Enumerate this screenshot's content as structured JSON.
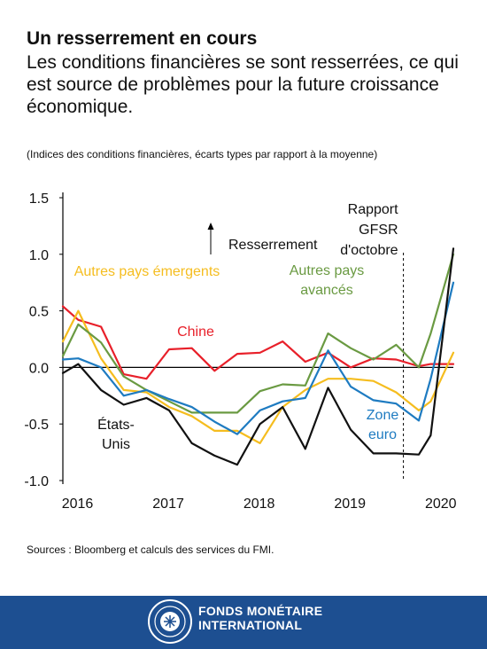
{
  "header": {
    "title": "Un resserrement en cours",
    "subtitle": "Les conditions financières se sont resserrées, ce qui est source de problèmes pour la future croissance économique.",
    "units_note": "(Indices des conditions financières, écarts types par rapport à la moyenne)"
  },
  "chart_data": {
    "type": "line",
    "title": "",
    "xlabel": "",
    "ylabel": "",
    "ylim": [
      -1.0,
      1.5
    ],
    "xlim": [
      2016.0,
      2020.3
    ],
    "yticks": [
      "1.5",
      "1.0",
      "0.5",
      "0.0",
      "-0.5",
      "-1.0"
    ],
    "ytick_values": [
      1.5,
      1.0,
      0.5,
      0.0,
      -0.5,
      -1.0
    ],
    "xticks": [
      "2016",
      "2017",
      "2018",
      "2019",
      "2020"
    ],
    "xtick_values": [
      2016.2,
      2017.2,
      2018.2,
      2019.2,
      2020.2
    ],
    "grid": false,
    "vline": {
      "x": 2019.75,
      "style": "dashed",
      "label": "Rapport GFSR d'octobre",
      "label_lines": [
        "Rapport",
        "GFSR",
        "d'octobre"
      ]
    },
    "annotation": {
      "label": "Resserrement",
      "direction": "up"
    },
    "series": [
      {
        "name": "Chine",
        "color": "#e8202a",
        "x": [
          2016.0,
          2016.17,
          2016.42,
          2016.67,
          2016.92,
          2017.17,
          2017.42,
          2017.67,
          2017.92,
          2018.17,
          2018.42,
          2018.67,
          2018.92,
          2019.17,
          2019.42,
          2019.67,
          2019.92,
          2020.05,
          2020.3
        ],
        "y": [
          0.54,
          0.42,
          0.36,
          -0.06,
          -0.1,
          0.16,
          0.17,
          -0.03,
          0.12,
          0.13,
          0.23,
          0.05,
          0.13,
          0.0,
          0.08,
          0.07,
          0.01,
          0.03,
          0.03
        ]
      },
      {
        "name": "Autres pays émergents",
        "color": "#f5bd1f",
        "x": [
          2016.0,
          2016.17,
          2016.42,
          2016.67,
          2016.92,
          2017.17,
          2017.42,
          2017.67,
          2017.92,
          2018.17,
          2018.42,
          2018.67,
          2018.92,
          2019.17,
          2019.42,
          2019.67,
          2019.92,
          2020.05,
          2020.3
        ],
        "y": [
          0.23,
          0.5,
          0.08,
          -0.2,
          -0.22,
          -0.35,
          -0.43,
          -0.56,
          -0.56,
          -0.67,
          -0.35,
          -0.2,
          -0.1,
          -0.1,
          -0.12,
          -0.22,
          -0.38,
          -0.3,
          0.13
        ]
      },
      {
        "name": "Autres pays avancés",
        "color": "#6a9a42",
        "x": [
          2016.0,
          2016.17,
          2016.42,
          2016.67,
          2016.92,
          2017.17,
          2017.42,
          2017.67,
          2017.92,
          2018.17,
          2018.42,
          2018.67,
          2018.92,
          2019.17,
          2019.42,
          2019.67,
          2019.92,
          2020.05,
          2020.3
        ],
        "y": [
          0.1,
          0.38,
          0.22,
          -0.08,
          -0.2,
          -0.3,
          -0.4,
          -0.4,
          -0.4,
          -0.21,
          -0.15,
          -0.16,
          0.3,
          0.17,
          0.07,
          0.2,
          0.0,
          0.3,
          1.0
        ]
      },
      {
        "name": "Zone euro",
        "color": "#1e7bc1",
        "x": [
          2016.0,
          2016.17,
          2016.42,
          2016.67,
          2016.92,
          2017.17,
          2017.42,
          2017.67,
          2017.92,
          2018.17,
          2018.42,
          2018.67,
          2018.92,
          2019.17,
          2019.42,
          2019.67,
          2019.92,
          2020.05,
          2020.3
        ],
        "y": [
          0.07,
          0.08,
          0.0,
          -0.25,
          -0.2,
          -0.28,
          -0.35,
          -0.48,
          -0.59,
          -0.38,
          -0.3,
          -0.27,
          0.15,
          -0.17,
          -0.29,
          -0.32,
          -0.47,
          -0.1,
          0.75
        ]
      },
      {
        "name": "États-Unis",
        "color": "#111111",
        "x": [
          2016.0,
          2016.17,
          2016.42,
          2016.67,
          2016.92,
          2017.17,
          2017.42,
          2017.67,
          2017.92,
          2018.17,
          2018.42,
          2018.67,
          2018.92,
          2019.17,
          2019.42,
          2019.67,
          2019.92,
          2020.05,
          2020.3
        ],
        "y": [
          -0.05,
          0.03,
          -0.2,
          -0.33,
          -0.27,
          -0.38,
          -0.67,
          -0.78,
          -0.86,
          -0.5,
          -0.35,
          -0.72,
          -0.18,
          -0.55,
          -0.76,
          -0.76,
          -0.77,
          -0.6,
          1.05
        ]
      }
    ],
    "series_labels": [
      {
        "series": "Chine",
        "lines": [
          "Chine"
        ]
      },
      {
        "series": "Autres pays émergents",
        "lines": [
          "Autres pays émergents"
        ]
      },
      {
        "series": "Autres pays avancés",
        "lines": [
          "Autres pays",
          "avancés"
        ]
      },
      {
        "series": "Zone euro",
        "lines": [
          "Zone",
          "euro"
        ]
      },
      {
        "series": "États-Unis",
        "lines": [
          "États-",
          "Unis"
        ]
      }
    ]
  },
  "source": "Sources : Bloomberg et calculs des services du FMI.",
  "footer": {
    "org_line1": "FONDS MONÉTAIRE",
    "org_line2": "INTERNATIONAL",
    "logo_icon": "imf-seal-icon",
    "background": "#1d4f91"
  }
}
